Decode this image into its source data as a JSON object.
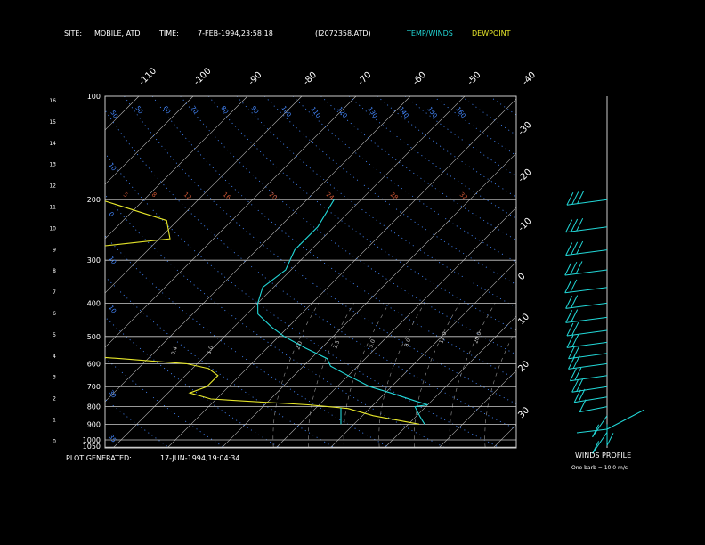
{
  "header": {
    "site_label": "SITE:",
    "site_value": "MOBILE, ATD",
    "time_label": "TIME:",
    "time_value": "7-FEB-1994,23:58:18",
    "file_id": "(I2072358.ATD)",
    "temp_winds_legend": "TEMP/WINDS",
    "dewpoint_legend": "DEWPOINT"
  },
  "footer": {
    "plot_generated_label": "PLOT GENERATED:",
    "plot_generated_value": "17-JUN-1994,19:04:34"
  },
  "winds_panel": {
    "title": "WINDS PROFILE",
    "note": "One barb = 10.0 m/s"
  },
  "colors": {
    "temperature": "#22d8d8",
    "dewpoint": "#e8e82a",
    "isotherm": "#bbbbbb",
    "dry_adiabat": "#4488ff",
    "moist_adiabat": "#cc5533",
    "mixing_ratio": "#999999",
    "frame": "#cccccc"
  },
  "chart_data": {
    "type": "line",
    "pressure_ticks": [
      100,
      200,
      300,
      400,
      500,
      600,
      700,
      800,
      900,
      1000,
      1050
    ],
    "height_ticks_km": [
      16,
      15,
      14,
      13,
      12,
      11,
      10,
      9,
      8,
      7,
      6,
      5,
      4,
      3,
      2,
      1,
      0
    ],
    "isotherm_labels_top": [
      "-110",
      "-100",
      "-90",
      "-80",
      "-70",
      "-60",
      "-50",
      "-40"
    ],
    "isotherm_labels_right": [
      "-30",
      "-20",
      "-10",
      "0",
      "10",
      "20",
      "30"
    ],
    "dry_adiabat_labels": [
      "50",
      "50",
      "60",
      "70",
      "80",
      "90",
      "100",
      "110",
      "120",
      "130",
      "140",
      "150",
      "160"
    ],
    "moist_adiabat_labels": [
      "5",
      "8",
      "12",
      "16",
      "20",
      "24",
      "28",
      "32"
    ],
    "mixing_ratio_labels": [
      "0.4",
      "1.0",
      "2.0",
      "3.5",
      "5.0",
      "8.0",
      "12.0",
      "20.0"
    ],
    "temperature_label_left": [
      "10",
      "0",
      "10",
      "10",
      "30",
      "35"
    ],
    "series": [
      {
        "name": "TEMP/WINDS",
        "points": [
          [
            200,
            -55
          ],
          [
            240,
            -53
          ],
          [
            280,
            -53
          ],
          [
            320,
            -51
          ],
          [
            360,
            -52
          ],
          [
            400,
            -50
          ],
          [
            430,
            -48
          ],
          [
            470,
            -43
          ],
          [
            500,
            -39
          ],
          [
            540,
            -33
          ],
          [
            580,
            -27
          ],
          [
            610,
            -25
          ],
          [
            650,
            -20
          ],
          [
            700,
            -14
          ],
          [
            730,
            -9
          ],
          [
            770,
            -3
          ],
          [
            790,
            0
          ],
          [
            800,
            -2
          ],
          [
            820,
            -1
          ],
          [
            860,
            1
          ],
          [
            900,
            3
          ]
        ]
      },
      {
        "name": "DEWPOINT",
        "points": [
          [
            200,
            -98
          ],
          [
            230,
            -82
          ],
          [
            260,
            -78
          ],
          [
            280,
            -95
          ],
          [
            300,
            -88
          ],
          [
            320,
            -102
          ],
          [
            340,
            -96
          ],
          [
            360,
            -110
          ],
          [
            380,
            -98
          ],
          [
            400,
            -90
          ],
          [
            420,
            -93
          ],
          [
            440,
            -97
          ],
          [
            460,
            -86
          ],
          [
            480,
            -101
          ],
          [
            500,
            -88
          ],
          [
            520,
            -103
          ],
          [
            540,
            -112
          ],
          [
            560,
            -80
          ],
          [
            580,
            -65
          ],
          [
            600,
            -52
          ],
          [
            620,
            -47
          ],
          [
            650,
            -44
          ],
          [
            700,
            -44
          ],
          [
            730,
            -46
          ],
          [
            760,
            -41
          ],
          [
            790,
            -22
          ],
          [
            810,
            -14
          ],
          [
            850,
            -8
          ],
          [
            900,
            2
          ]
        ]
      }
    ],
    "winds": [
      {
        "p": 200,
        "dir": 250,
        "speed": 30
      },
      {
        "p": 240,
        "dir": 255,
        "speed": 28
      },
      {
        "p": 280,
        "dir": 255,
        "speed": 28
      },
      {
        "p": 320,
        "dir": 260,
        "speed": 26
      },
      {
        "p": 360,
        "dir": 260,
        "speed": 24
      },
      {
        "p": 400,
        "dir": 255,
        "speed": 22
      },
      {
        "p": 440,
        "dir": 255,
        "speed": 20
      },
      {
        "p": 480,
        "dir": 250,
        "speed": 20
      },
      {
        "p": 520,
        "dir": 250,
        "speed": 19
      },
      {
        "p": 560,
        "dir": 245,
        "speed": 18
      },
      {
        "p": 600,
        "dir": 245,
        "speed": 17
      },
      {
        "p": 650,
        "dir": 240,
        "speed": 16
      },
      {
        "p": 700,
        "dir": 235,
        "speed": 16
      },
      {
        "p": 750,
        "dir": 230,
        "speed": 15
      },
      {
        "p": 800,
        "dir": 220,
        "speed": 14
      },
      {
        "p": 850,
        "dir": 200,
        "speed": 10
      },
      {
        "p": 900,
        "dir": 180,
        "speed": 6
      },
      {
        "p": 950,
        "dir": 160,
        "speed": 4
      }
    ]
  }
}
